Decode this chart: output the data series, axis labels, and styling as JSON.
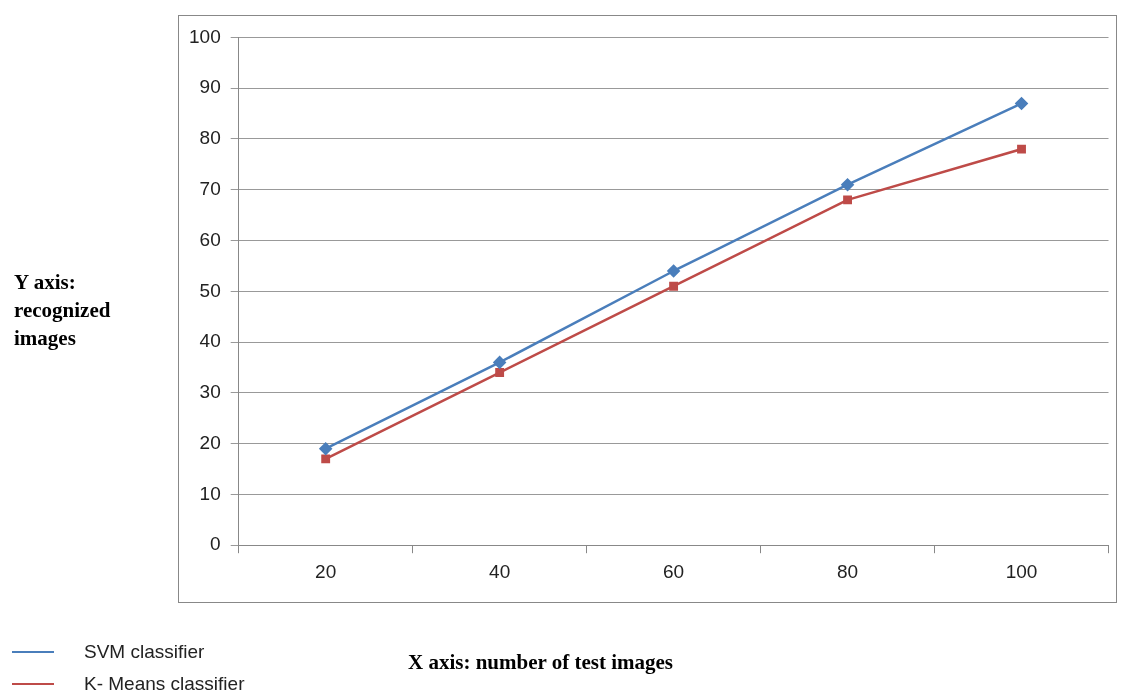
{
  "chart_data": {
    "type": "line",
    "xlabel": "X axis: number of test images",
    "ylabel": "Y axis: recognized images",
    "categories": [
      "20",
      "40",
      "60",
      "80",
      "100"
    ],
    "series": [
      {
        "name": "SVM  classifier",
        "color": "#4a7ebb",
        "values": [
          19,
          36,
          54,
          71,
          87
        ],
        "marker": "diamond"
      },
      {
        "name": "K- Means classifier",
        "color": "#be4b48",
        "values": [
          17,
          34,
          51,
          68,
          78
        ],
        "marker": "square"
      }
    ],
    "ylim": [
      0,
      100
    ],
    "yticks": [
      0,
      10,
      20,
      30,
      40,
      50,
      60,
      70,
      80,
      90,
      100
    ],
    "grid": "y",
    "legend": "bottom left",
    "line_style": "solid"
  }
}
